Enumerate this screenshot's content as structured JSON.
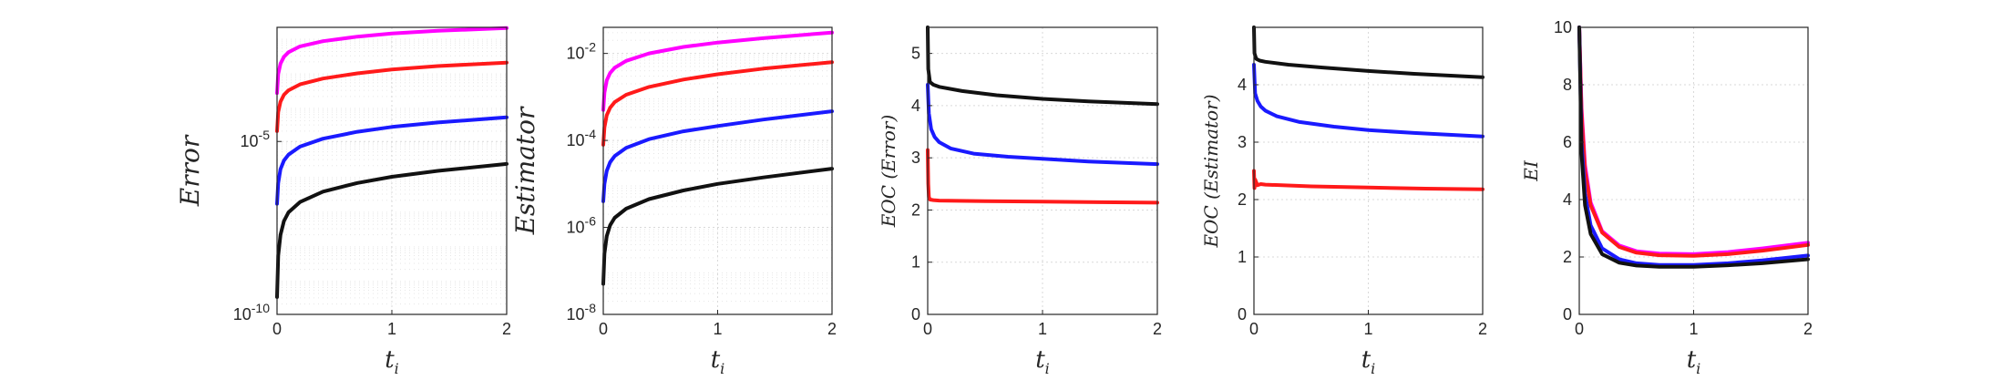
{
  "colors": {
    "magenta": "#ff00ff",
    "red": "#ff1a1a",
    "blue": "#1a1aff",
    "black": "#111111"
  },
  "chart_data": [
    {
      "type": "line",
      "yscale": "log",
      "xlabel": "t",
      "xlabel_sub": "i",
      "ylabel": "Error",
      "xlim": [
        0,
        2
      ],
      "ylim_exp": [
        -10,
        -1.7
      ],
      "xticks": [
        0,
        1,
        2
      ],
      "xtick_labels": [
        "0",
        "1",
        "2"
      ],
      "yticks_exp": [
        -10,
        -5
      ],
      "ytick_labels": [
        "10^-10",
        "10^-5"
      ],
      "grid": "on",
      "series": [
        {
          "color": "magenta",
          "x": [
            0,
            0.01,
            0.03,
            0.06,
            0.1,
            0.2,
            0.4,
            0.7,
            1.0,
            1.4,
            2.0
          ],
          "y_exp": [
            -3.6,
            -3.05,
            -2.75,
            -2.55,
            -2.42,
            -2.25,
            -2.1,
            -1.97,
            -1.88,
            -1.8,
            -1.72
          ]
        },
        {
          "color": "red",
          "x": [
            0,
            0.01,
            0.03,
            0.06,
            0.1,
            0.2,
            0.4,
            0.7,
            1.0,
            1.4,
            2.0
          ],
          "y_exp": [
            -4.7,
            -4.15,
            -3.85,
            -3.65,
            -3.52,
            -3.35,
            -3.18,
            -3.03,
            -2.92,
            -2.82,
            -2.72
          ]
        },
        {
          "color": "blue",
          "x": [
            0,
            0.01,
            0.03,
            0.06,
            0.1,
            0.2,
            0.4,
            0.7,
            1.0,
            1.4,
            2.0
          ],
          "y_exp": [
            -6.8,
            -6.2,
            -5.8,
            -5.55,
            -5.38,
            -5.15,
            -4.92,
            -4.72,
            -4.58,
            -4.45,
            -4.3
          ]
        },
        {
          "color": "black",
          "x": [
            0,
            0.01,
            0.03,
            0.06,
            0.1,
            0.2,
            0.4,
            0.7,
            1.0,
            1.4,
            2.0
          ],
          "y_exp": [
            -9.5,
            -8.3,
            -7.7,
            -7.3,
            -7.05,
            -6.75,
            -6.45,
            -6.2,
            -6.02,
            -5.85,
            -5.65
          ]
        }
      ]
    },
    {
      "type": "line",
      "yscale": "log",
      "xlabel": "t",
      "xlabel_sub": "i",
      "ylabel": "Estimator",
      "xlim": [
        0,
        2
      ],
      "ylim_exp": [
        -8,
        -1.4
      ],
      "xticks": [
        0,
        1,
        2
      ],
      "xtick_labels": [
        "0",
        "1",
        "2"
      ],
      "yticks_exp": [
        -8,
        -6,
        -4,
        -2
      ],
      "ytick_labels": [
        "10^-8",
        "10^-6",
        "10^-4",
        "10^-2"
      ],
      "grid": "on",
      "series": [
        {
          "color": "magenta",
          "x": [
            0,
            0.01,
            0.03,
            0.06,
            0.1,
            0.2,
            0.4,
            0.7,
            1.0,
            1.4,
            2.0
          ],
          "y_exp": [
            -3.3,
            -2.9,
            -2.62,
            -2.45,
            -2.33,
            -2.17,
            -2.0,
            -1.85,
            -1.75,
            -1.65,
            -1.52
          ]
        },
        {
          "color": "red",
          "x": [
            0,
            0.01,
            0.03,
            0.06,
            0.1,
            0.2,
            0.4,
            0.7,
            1.0,
            1.4,
            2.0
          ],
          "y_exp": [
            -4.1,
            -3.7,
            -3.42,
            -3.25,
            -3.12,
            -2.95,
            -2.77,
            -2.6,
            -2.48,
            -2.35,
            -2.2
          ]
        },
        {
          "color": "blue",
          "x": [
            0,
            0.01,
            0.03,
            0.06,
            0.1,
            0.2,
            0.4,
            0.7,
            1.0,
            1.4,
            2.0
          ],
          "y_exp": [
            -5.4,
            -5.0,
            -4.7,
            -4.5,
            -4.36,
            -4.17,
            -3.97,
            -3.79,
            -3.67,
            -3.52,
            -3.33
          ]
        },
        {
          "color": "black",
          "x": [
            0,
            0.01,
            0.03,
            0.06,
            0.1,
            0.2,
            0.4,
            0.7,
            1.0,
            1.4,
            2.0
          ],
          "y_exp": [
            -7.3,
            -6.6,
            -6.2,
            -5.95,
            -5.78,
            -5.57,
            -5.35,
            -5.15,
            -5.0,
            -4.85,
            -4.65
          ]
        }
      ]
    },
    {
      "type": "line",
      "yscale": "linear",
      "xlabel": "t",
      "xlabel_sub": "i",
      "ylabel": "EOC (Error)",
      "xlim": [
        0,
        2
      ],
      "ylim": [
        0,
        5.5
      ],
      "xticks": [
        0,
        1,
        2
      ],
      "xtick_labels": [
        "0",
        "1",
        "2"
      ],
      "yticks": [
        0,
        1,
        2,
        3,
        4,
        5
      ],
      "ytick_labels": [
        "0",
        "1",
        "2",
        "3",
        "4",
        "5"
      ],
      "grid": "on",
      "series": [
        {
          "color": "black",
          "x": [
            0,
            0.005,
            0.02,
            0.05,
            0.1,
            0.3,
            0.6,
            1.0,
            1.4,
            2.0
          ],
          "y": [
            5.5,
            4.7,
            4.45,
            4.4,
            4.36,
            4.28,
            4.2,
            4.13,
            4.08,
            4.03
          ]
        },
        {
          "color": "blue",
          "x": [
            0,
            0.01,
            0.03,
            0.06,
            0.1,
            0.2,
            0.4,
            0.7,
            1.0,
            1.4,
            2.0
          ],
          "y": [
            4.4,
            3.85,
            3.55,
            3.4,
            3.3,
            3.18,
            3.08,
            3.02,
            2.98,
            2.93,
            2.88
          ]
        },
        {
          "color": "red",
          "x": [
            0,
            0.005,
            0.01,
            0.02,
            0.05,
            0.1,
            0.5,
            1.0,
            1.5,
            2.0
          ],
          "y": [
            3.15,
            2.5,
            2.25,
            2.2,
            2.19,
            2.18,
            2.17,
            2.16,
            2.15,
            2.14
          ]
        }
      ]
    },
    {
      "type": "line",
      "yscale": "linear",
      "xlabel": "t",
      "xlabel_sub": "i",
      "ylabel": "EOC (Estimator)",
      "xlim": [
        0,
        2
      ],
      "ylim": [
        0,
        5
      ],
      "xticks": [
        0,
        1,
        2
      ],
      "xtick_labels": [
        "0",
        "1",
        "2"
      ],
      "yticks": [
        0,
        1,
        2,
        3,
        4
      ],
      "ytick_labels": [
        "0",
        "1",
        "2",
        "3",
        "4"
      ],
      "grid": "on",
      "series": [
        {
          "color": "black",
          "x": [
            0,
            0.005,
            0.02,
            0.05,
            0.1,
            0.3,
            0.6,
            1.0,
            1.4,
            2.0
          ],
          "y": [
            5.0,
            4.55,
            4.45,
            4.42,
            4.4,
            4.35,
            4.3,
            4.24,
            4.19,
            4.13
          ]
        },
        {
          "color": "blue",
          "x": [
            0,
            0.01,
            0.03,
            0.06,
            0.1,
            0.2,
            0.4,
            0.7,
            1.0,
            1.4,
            2.0
          ],
          "y": [
            4.35,
            3.85,
            3.72,
            3.62,
            3.55,
            3.45,
            3.35,
            3.27,
            3.21,
            3.16,
            3.1
          ]
        },
        {
          "color": "red",
          "x": [
            0,
            0.005,
            0.01,
            0.03,
            0.06,
            0.1,
            0.5,
            1.0,
            1.5,
            2.0
          ],
          "y": [
            2.5,
            2.2,
            2.35,
            2.25,
            2.27,
            2.26,
            2.23,
            2.21,
            2.19,
            2.18
          ]
        }
      ]
    },
    {
      "type": "line",
      "yscale": "linear",
      "xlabel": "t",
      "xlabel_sub": "i",
      "ylabel": "EI",
      "xlim": [
        0,
        2
      ],
      "ylim": [
        0,
        10
      ],
      "xticks": [
        0,
        1,
        2
      ],
      "xtick_labels": [
        "0",
        "1",
        "2"
      ],
      "yticks": [
        0,
        2,
        4,
        6,
        8,
        10
      ],
      "ytick_labels": [
        "0",
        "2",
        "4",
        "6",
        "8",
        "10"
      ],
      "grid": "on",
      "series": [
        {
          "color": "magenta",
          "x": [
            0,
            0.02,
            0.05,
            0.1,
            0.2,
            0.35,
            0.5,
            0.7,
            1.0,
            1.3,
            1.6,
            2.0
          ],
          "y": [
            10,
            7.2,
            5.2,
            3.9,
            2.9,
            2.4,
            2.2,
            2.12,
            2.1,
            2.17,
            2.3,
            2.5
          ]
        },
        {
          "color": "red",
          "x": [
            0,
            0.02,
            0.05,
            0.1,
            0.2,
            0.35,
            0.5,
            0.7,
            1.0,
            1.3,
            1.6,
            2.0
          ],
          "y": [
            10,
            7.0,
            5.0,
            3.8,
            2.85,
            2.35,
            2.15,
            2.06,
            2.04,
            2.1,
            2.22,
            2.42
          ]
        },
        {
          "color": "blue",
          "x": [
            0,
            0.02,
            0.05,
            0.1,
            0.2,
            0.35,
            0.5,
            0.7,
            1.0,
            1.3,
            1.6,
            2.0
          ],
          "y": [
            10,
            6.0,
            4.2,
            3.1,
            2.3,
            1.92,
            1.78,
            1.72,
            1.72,
            1.78,
            1.88,
            2.05
          ]
        },
        {
          "color": "black",
          "x": [
            0,
            0.02,
            0.05,
            0.1,
            0.2,
            0.35,
            0.5,
            0.7,
            1.0,
            1.3,
            1.6,
            2.0
          ],
          "y": [
            10,
            5.6,
            3.8,
            2.8,
            2.1,
            1.8,
            1.7,
            1.66,
            1.66,
            1.71,
            1.78,
            1.92
          ]
        }
      ]
    }
  ]
}
